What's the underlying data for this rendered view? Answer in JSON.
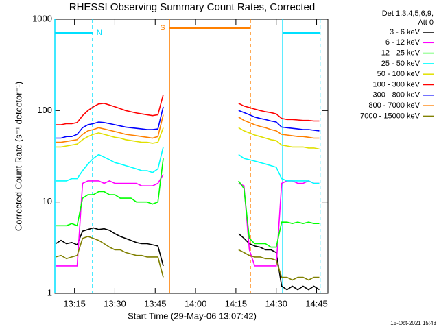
{
  "chart_data": {
    "type": "line",
    "title": "RHESSI Observing Summary Count Rates, Corrected",
    "x_label": "Start Time (29-May-06 13:07:42)",
    "y_label": "Corrected Count Rate (s⁻¹ detector⁻¹)",
    "legend_title": [
      "Det 1,3,4,5,6,9,",
      "Att 0"
    ],
    "footer": "15-Oct-2021 15:43",
    "log_y": true,
    "xlim": [
      787.7,
      889.2
    ],
    "ylim": [
      1,
      1000
    ],
    "yticks": [
      1,
      10,
      100,
      1000
    ],
    "xticks": [
      {
        "value": 795,
        "label": "13:15"
      },
      {
        "value": 810,
        "label": "13:30"
      },
      {
        "value": 825,
        "label": "13:45"
      },
      {
        "value": 840,
        "label": "14:00"
      },
      {
        "value": 855,
        "label": "14:15"
      },
      {
        "value": 870,
        "label": "14:30"
      },
      {
        "value": 885,
        "label": "14:45"
      }
    ],
    "intervals": [
      {
        "label": "N",
        "start": 787.7,
        "end": 801.7,
        "color": "#00e0ff"
      },
      {
        "label": "S",
        "start": 830.3,
        "end": 860.4,
        "color": "#ff8000"
      },
      {
        "start": 872.4,
        "end": 886.3,
        "color": "#00e0ff"
      }
    ],
    "x": [
      788,
      790,
      792,
      794,
      796,
      798,
      800,
      802,
      804,
      806,
      808,
      810,
      812,
      814,
      816,
      818,
      820,
      822,
      824,
      826,
      828,
      842,
      856,
      858,
      860,
      862,
      864,
      866,
      868,
      870,
      872,
      874,
      876,
      878,
      880,
      882,
      884,
      886
    ],
    "series": [
      {
        "name": "3 - 6 keV",
        "color": "#000000",
        "values": [
          3.5,
          3.8,
          3.5,
          3.6,
          3.4,
          4.8,
          5,
          5.2,
          5,
          5.1,
          4.9,
          4.5,
          4.2,
          4,
          3.8,
          3.6,
          3.5,
          3.5,
          3.4,
          3.3,
          2,
          null,
          4.5,
          4,
          3.5,
          3.3,
          3.2,
          3,
          3,
          2.8,
          1.2,
          1.1,
          1.2,
          1.1,
          1.2,
          1.1,
          1.2,
          1.1
        ]
      },
      {
        "name": "6 - 12 keV",
        "color": "#ff00ff",
        "values": [
          2,
          2,
          2,
          2,
          2,
          16,
          17,
          17,
          17,
          16,
          17,
          16,
          16,
          16,
          16,
          16,
          15,
          15,
          15,
          16,
          20,
          null,
          16,
          15,
          3,
          2,
          2,
          2,
          2,
          2,
          16,
          17,
          17,
          16,
          16,
          17,
          16,
          16
        ]
      },
      {
        "name": "12 - 25 keV",
        "color": "#00ff00",
        "values": [
          5.5,
          5.5,
          5.5,
          5.8,
          5.5,
          11,
          12,
          12,
          13,
          13,
          12,
          12,
          11,
          11,
          11,
          10,
          10,
          10,
          9.5,
          10,
          30,
          null,
          17,
          14,
          4,
          3.5,
          3.5,
          3.5,
          3.2,
          3.2,
          6,
          6,
          5.8,
          6,
          5.8,
          6,
          5.8,
          5.8
        ]
      },
      {
        "name": "25 - 50 keV",
        "color": "#00ffff",
        "values": [
          17,
          17,
          17,
          18,
          18,
          22,
          26,
          30,
          33,
          31,
          29,
          27,
          26,
          25,
          24,
          23,
          22,
          22,
          21,
          23,
          40,
          null,
          33,
          30,
          29,
          28,
          27,
          26,
          25,
          24,
          18,
          17,
          17,
          17,
          17,
          17,
          16,
          16
        ]
      },
      {
        "name": "50 - 100 keV",
        "color": "#e0e000",
        "values": [
          40,
          40,
          41,
          42,
          43,
          48,
          52,
          55,
          57,
          55,
          53,
          51,
          50,
          48,
          47,
          46,
          45,
          45,
          44,
          45,
          65,
          null,
          65,
          60,
          57,
          54,
          52,
          50,
          48,
          47,
          42,
          41,
          40,
          40,
          40,
          39,
          39,
          38
        ]
      },
      {
        "name": "100 - 300 keV",
        "color": "#ff0000",
        "values": [
          70,
          70,
          72,
          72,
          74,
          88,
          100,
          110,
          118,
          120,
          115,
          110,
          105,
          100,
          97,
          94,
          92,
          90,
          88,
          90,
          150,
          null,
          120,
          112,
          108,
          104,
          100,
          97,
          95,
          92,
          82,
          80,
          80,
          79,
          78,
          78,
          77,
          77
        ]
      },
      {
        "name": "300 - 800 keV",
        "color": "#0000ff",
        "values": [
          50,
          50,
          52,
          52,
          55,
          65,
          70,
          72,
          75,
          74,
          72,
          70,
          68,
          66,
          65,
          64,
          63,
          62,
          62,
          63,
          110,
          null,
          100,
          95,
          90,
          85,
          82,
          80,
          77,
          75,
          66,
          65,
          64,
          63,
          62,
          62,
          61,
          60
        ]
      },
      {
        "name": "800 - 7000 keV",
        "color": "#ff8000",
        "values": [
          45,
          45,
          46,
          47,
          48,
          55,
          60,
          62,
          65,
          63,
          61,
          59,
          57,
          55,
          54,
          53,
          52,
          51,
          50,
          52,
          90,
          null,
          85,
          78,
          74,
          70,
          67,
          65,
          62,
          60,
          55,
          54,
          53,
          52,
          52,
          51,
          50,
          50
        ]
      },
      {
        "name": "7000 - 15000 keV",
        "color": "#808000",
        "values": [
          2.5,
          2.6,
          2.4,
          2.5,
          2.6,
          4,
          4.2,
          4,
          3.8,
          3.5,
          3.2,
          3,
          3,
          2.8,
          2.7,
          2.6,
          2.6,
          2.5,
          2.5,
          2.5,
          1.5,
          null,
          3,
          2.8,
          2.6,
          2.5,
          2.5,
          2.4,
          2.4,
          2.3,
          1.5,
          1.5,
          1.4,
          1.5,
          1.5,
          1.4,
          1.5,
          1.5
        ]
      }
    ]
  }
}
